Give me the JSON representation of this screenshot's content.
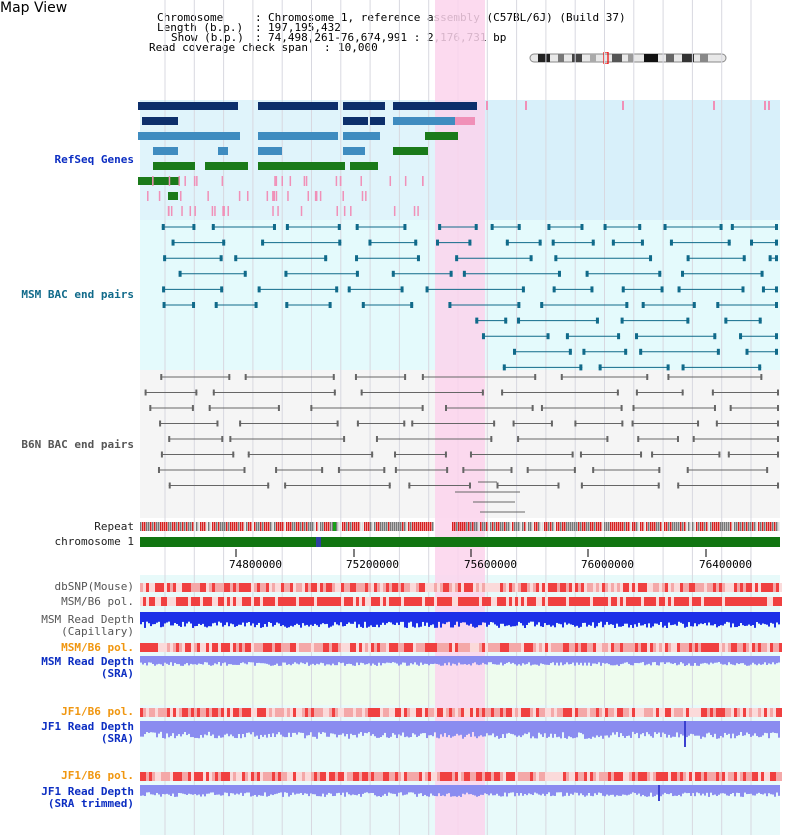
{
  "page_title": "Map View",
  "info": {
    "chromosome_key": "Chromosome",
    "chromosome_val": "Chromosome 1, reference assembly (C57BL/6J) (Build 37)",
    "length_key": "Length (b.p.)",
    "length_val": "197,195,432",
    "show_key": "Show (b.p.)",
    "show_val": "74,498,261-76,674,991 : 2,176,731 bp",
    "coverage_key": "Read coverage check span",
    "coverage_val": "10,000"
  },
  "tracks": {
    "refseq": "RefSeq Genes",
    "msm_bac": "MSM BAC end pairs",
    "b6n_bac": "B6N BAC end pairs",
    "repeat": "Repeat",
    "chromosome": "chromosome 1",
    "dbsnp": "dbSNP(Mouse)",
    "msm_b6_pol_1": "MSM/B6 pol.",
    "msm_depth_cap_1": "MSM Read Depth",
    "msm_depth_cap_2": "(Capillary)",
    "msm_b6_pol_2": "MSM/B6 pol.",
    "msm_depth_sra_1": "MSM Read Depth",
    "msm_depth_sra_2": "(SRA)",
    "jf1_b6_pol_1": "JF1/B6 pol.",
    "jf1_depth_sra_1": "JF1 Read Depth",
    "jf1_depth_sra_2": "(SRA)",
    "jf1_b6_pol_2": "JF1/B6 pol.",
    "jf1_depth_trim_1": "JF1 Read Depth",
    "jf1_depth_trim_2": "(SRA trimmed)"
  },
  "ruler": [
    "74800000",
    "75200000",
    "75600000",
    "76000000",
    "76400000"
  ],
  "colors": {
    "refseq_bg": "#d8f0fa",
    "bac_bg": "#e4fafc",
    "b6n_bg": "#f5f5f5",
    "highlight": "#fbd3ec",
    "gene_dark": "#0d2f6b",
    "gene_mid": "#3f8cc0",
    "gene_green": "#1a7a1a",
    "gene_pink": "#f090b8",
    "bac_teal": "#106a8a",
    "b6n_gray": "#666666",
    "chromosome_bar": "#117511",
    "depth_blue": "#1c2fe8",
    "depth_light": "#8a8cf0",
    "pol_red": "#f04040",
    "pol_pink": "#f4a8a8"
  }
}
